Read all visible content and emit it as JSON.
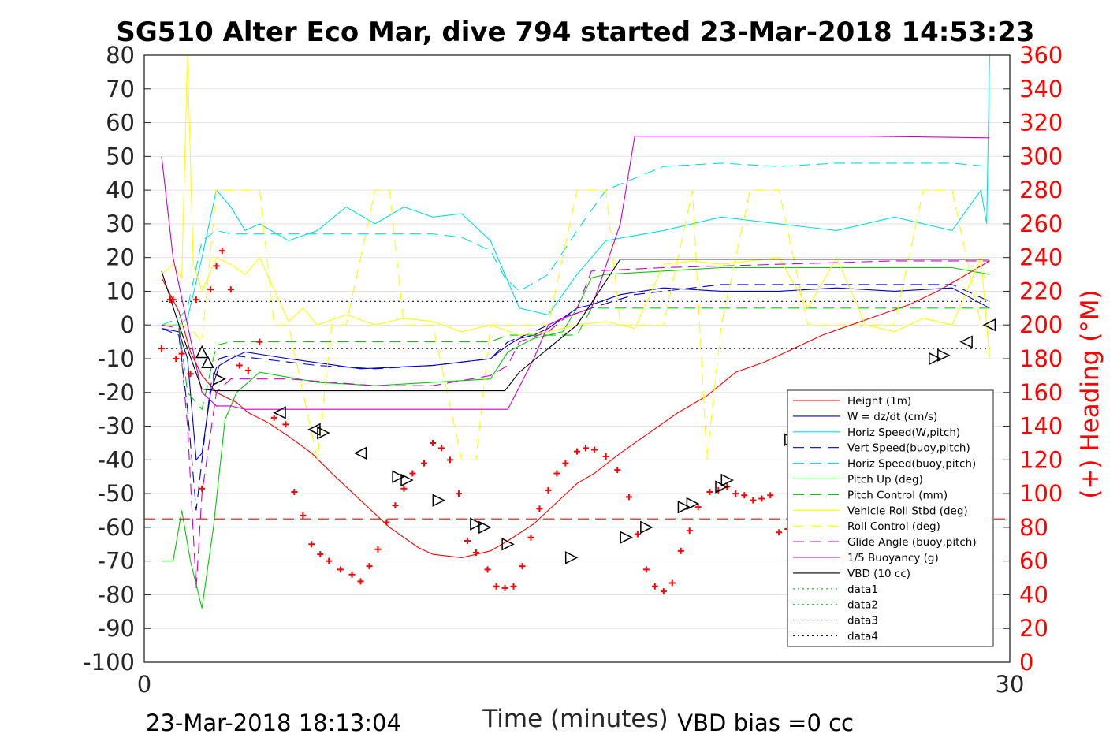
{
  "chart_data": {
    "type": "line",
    "title": "SG510 Alter Eco Mar, dive 794 started 23-Mar-2018 14:53:23",
    "xlabel": "Time (minutes)",
    "ylabel_right": "(+) Heading (°M)",
    "xlim": [
      0,
      30
    ],
    "ylim": [
      -100,
      80
    ],
    "ylim_right": [
      0,
      360
    ],
    "x_ticks": [
      "0",
      "30"
    ],
    "y_ticks": [
      "80",
      "70",
      "60",
      "50",
      "40",
      "30",
      "20",
      "10",
      "0",
      "-10",
      "-20",
      "-30",
      "-40",
      "-50",
      "-60",
      "-70",
      "-80",
      "-90",
      "-100"
    ],
    "y_ticks_right": [
      "360",
      "340",
      "320",
      "300",
      "280",
      "260",
      "240",
      "220",
      "200",
      "180",
      "160",
      "140",
      "120",
      "100",
      "80",
      "60",
      "40",
      "20",
      "0"
    ],
    "grid": true,
    "legend_position": "lower-right",
    "footer_left": "23-Mar-2018 18:13:04",
    "footer_right": "VBD bias =0 cc",
    "series": [
      {
        "name": "Height (1m)",
        "color": "#ff0000",
        "style": "solid",
        "x": [
          0.6,
          1.2,
          1.6,
          2.0,
          2.5,
          3.2,
          3.6,
          4.3,
          5.0,
          5.8,
          6.5,
          7.5,
          8.5,
          9.5,
          10.0,
          11.0,
          12.0,
          12.6,
          13.5,
          14.0,
          14.5,
          15.0,
          15.6,
          16.5,
          17.5,
          18.5,
          19.5,
          20.5,
          21.5,
          22.5,
          23.5,
          24.5,
          25.5,
          26.5,
          27.5,
          28.5,
          29.3
        ],
        "y": [
          14,
          4,
          -8,
          -15,
          -20,
          -23,
          -26,
          -29,
          -33,
          -38,
          -44,
          -52,
          -60,
          -66,
          -68,
          -69,
          -67,
          -64,
          -59,
          -55,
          -51,
          -47,
          -44,
          -38,
          -32,
          -26,
          -21,
          -14,
          -11,
          -7,
          -3,
          0,
          3,
          6,
          10,
          15,
          19
        ]
      },
      {
        "name": "W = dz/dt (cm/s)",
        "color": "#0000cc",
        "style": "solid",
        "x": [
          0.6,
          1.2,
          1.5,
          1.8,
          2.0,
          2.3,
          2.6,
          3.0,
          3.5,
          5.0,
          7.5,
          10.0,
          12.0,
          12.6,
          13.0,
          13.5,
          14.0,
          14.5,
          15.0,
          15.5,
          16.5,
          18.0,
          20.0,
          22.0,
          24.0,
          26.0,
          28.0,
          29.3
        ],
        "y": [
          -1,
          -2,
          -10,
          -40,
          -38,
          -20,
          -12,
          -10,
          -8,
          -10,
          -13,
          -12,
          -10,
          -6,
          -4,
          -3,
          -1,
          2,
          5,
          6,
          9,
          11,
          10,
          10,
          11,
          10,
          11,
          5
        ]
      },
      {
        "name": "Horiz Speed(W,pitch)",
        "color": "#00e0e0",
        "style": "solid",
        "x": [
          0.6,
          1.2,
          1.5,
          2.0,
          2.5,
          3.0,
          3.5,
          4.0,
          5.0,
          6.0,
          7.0,
          8.0,
          9.0,
          10.0,
          11.0,
          12.0,
          12.5,
          13.0,
          14.0,
          15.0,
          15.5,
          16.0,
          18.0,
          20.0,
          22.0,
          24.0,
          26.0,
          28.0,
          29.0,
          29.2,
          29.3
        ],
        "y": [
          0,
          0,
          2,
          20,
          40,
          35,
          28,
          30,
          25,
          28,
          35,
          30,
          35,
          32,
          33,
          25,
          15,
          5,
          3,
          15,
          20,
          25,
          28,
          32,
          30,
          28,
          32,
          28,
          40,
          30,
          80
        ]
      },
      {
        "name": "Vert Speed(buoy,pitch)",
        "color": "#0000cc",
        "style": "dash",
        "x": [
          0.6,
          1.2,
          1.5,
          1.8,
          2.0,
          2.3,
          2.6,
          3.0,
          4.0,
          6.0,
          8.0,
          10.0,
          12.0,
          12.6,
          13.5,
          14.5,
          15.5,
          17.0,
          20.0,
          24.0,
          28.0,
          29.3
        ],
        "y": [
          -1,
          -3,
          -25,
          -55,
          -40,
          -18,
          -10,
          -9,
          -10,
          -12,
          -13,
          -12,
          -10,
          -5,
          -2,
          2,
          5,
          9,
          12,
          12,
          12,
          7
        ]
      },
      {
        "name": "Horiz Speed(buoy,pitch)",
        "color": "#00e0e0",
        "style": "dash",
        "x": [
          0.6,
          1.2,
          1.5,
          2.0,
          2.5,
          3.0,
          4.0,
          6.0,
          8.0,
          10.0,
          11.0,
          12.0,
          12.5,
          13.0,
          14.0,
          15.0,
          16.0,
          18.0,
          20.0,
          22.0,
          24.0,
          26.0,
          28.0,
          29.3
        ],
        "y": [
          0,
          2,
          5,
          25,
          28,
          27,
          27,
          27,
          27,
          27,
          26,
          22,
          14,
          10,
          15,
          28,
          40,
          47,
          48,
          47,
          48,
          48,
          48,
          47
        ]
      },
      {
        "name": "Pitch Up (deg)",
        "color": "#00cc00",
        "style": "solid",
        "x": [
          0.6,
          1.0,
          1.3,
          1.6,
          2.0,
          2.4,
          2.8,
          3.2,
          4.0,
          6.0,
          8.0,
          10.0,
          12.0,
          12.6,
          13.5,
          14.5,
          15.0,
          15.5,
          16.0,
          18.0,
          20.0,
          22.0,
          24.0,
          26.0,
          28.0,
          29.3
        ],
        "y": [
          -70,
          -70,
          -55,
          -70,
          -84,
          -60,
          -28,
          -20,
          -14,
          -17,
          -18,
          -17,
          -16,
          -8,
          -4,
          -2,
          5,
          14,
          15,
          16,
          17,
          17,
          17,
          17,
          17,
          15
        ]
      },
      {
        "name": "Pitch Control (mm)",
        "color": "#00cc00",
        "style": "dash",
        "x": [
          0.6,
          1.2,
          1.5,
          2.0,
          2.5,
          3.0,
          5.0,
          8.0,
          12.0,
          12.6,
          13.0,
          14.0,
          15.0,
          15.5,
          20.0,
          25.0,
          29.3
        ],
        "y": [
          0,
          0,
          -20,
          -25,
          -6,
          -5,
          -5,
          -5,
          -5,
          -3,
          -3,
          -3,
          -3,
          5,
          5,
          5,
          5
        ]
      },
      {
        "name": "Vehicle Roll Stbd (deg)",
        "color": "#ffff00",
        "style": "solid",
        "x": [
          0.6,
          1.0,
          1.3,
          1.5,
          1.7,
          2.0,
          2.5,
          3.0,
          3.5,
          4.0,
          5.0,
          5.5,
          6.0,
          7.0,
          8.0,
          9.0,
          10.0,
          11.0,
          12.0,
          13.0,
          14.0,
          15.0,
          16.0,
          17.0,
          18.0,
          19.0,
          20.0,
          21.0,
          22.0,
          23.0,
          24.0,
          25.0,
          26.0,
          27.0,
          28.0,
          29.0,
          29.3
        ],
        "y": [
          15,
          18,
          14,
          80,
          18,
          10,
          20,
          18,
          15,
          20,
          1,
          5,
          0,
          3,
          0,
          2,
          1,
          -2,
          0,
          -3,
          -2,
          0,
          1,
          -1,
          18,
          19,
          18,
          19,
          20,
          5,
          20,
          0,
          -2,
          2,
          0,
          20,
          -10
        ]
      },
      {
        "name": "Roll Control (deg)",
        "color": "#ffff00",
        "style": "dash",
        "x": [
          0.6,
          1.5,
          2.0,
          2.5,
          3.0,
          4.0,
          4.5,
          5.0,
          6.0,
          6.5,
          7.0,
          8.0,
          8.5,
          9.0,
          10.0,
          11.0,
          11.5,
          12.0,
          13.0,
          14.0,
          15.0,
          16.0,
          16.5,
          17.0,
          18.0,
          19.0,
          19.5,
          20.0,
          21.0,
          22.0,
          23.0,
          24.0,
          25.0,
          26.0,
          27.0,
          28.0,
          29.0,
          29.3
        ],
        "y": [
          0,
          0,
          -5,
          40,
          40,
          40,
          0,
          0,
          -40,
          0,
          0,
          40,
          40,
          0,
          0,
          -40,
          -40,
          0,
          0,
          0,
          40,
          40,
          0,
          0,
          0,
          40,
          -40,
          0,
          40,
          40,
          0,
          0,
          0,
          0,
          40,
          40,
          0,
          0
        ]
      },
      {
        "name": "Glide Angle (buoy,pitch)",
        "color": "#cc00cc",
        "style": "dash",
        "x": [
          0.6,
          1.2,
          1.5,
          1.8,
          2.0,
          2.5,
          3.0,
          5.0,
          8.0,
          10.0,
          12.0,
          12.6,
          13.0,
          14.0,
          15.0,
          15.5,
          18.0,
          22.0,
          26.0,
          29.3
        ],
        "y": [
          0,
          -1,
          -30,
          -78,
          -50,
          -20,
          -16,
          -16,
          -18,
          -18,
          -15,
          -12,
          -5,
          -2,
          5,
          16,
          17,
          18,
          19,
          19
        ]
      },
      {
        "name": "1/5 Buoyancy (g)",
        "color": "#cc00cc",
        "style": "solid",
        "x": [
          0.6,
          1.0,
          1.5,
          2.0,
          2.5,
          3.0,
          3.5,
          12.0,
          12.6,
          13.5,
          14.0,
          14.5,
          15.5,
          16.5,
          17.0,
          20.0,
          25.0,
          29.3
        ],
        "y": [
          50,
          20,
          0,
          -20,
          -24,
          -24,
          -25,
          -25,
          -25,
          -10,
          0,
          2,
          5,
          30,
          56,
          56,
          56,
          55.5
        ]
      },
      {
        "name": "VBD (10 cc)",
        "color": "#000000",
        "style": "solid",
        "x": [
          0.6,
          1.2,
          2.0,
          2.5,
          5.0,
          10.0,
          12.5,
          13.0,
          15.0,
          16.5,
          17.0,
          20.0,
          25.0,
          29.3
        ],
        "y": [
          16,
          0,
          -19,
          -19.5,
          -19.5,
          -19.5,
          -19.5,
          -14,
          0,
          19.5,
          19.5,
          19.5,
          19.5,
          19.5
        ]
      },
      {
        "name": "data1",
        "color": "#00cc00",
        "style": "dot",
        "x": [],
        "y": []
      },
      {
        "name": "data2",
        "color": "#00cc00",
        "style": "dot",
        "x": [],
        "y": []
      },
      {
        "name": "data3",
        "color": "#000080",
        "style": "dot",
        "x": [
          0.6,
          29.3
        ],
        "y": [
          7,
          7
        ]
      },
      {
        "name": "data4",
        "color": "#000080",
        "style": "dot",
        "x": [
          0.6,
          29.3
        ],
        "y": [
          -7,
          -7
        ]
      }
    ],
    "heading_series": {
      "axis": "right",
      "color": "#ff0000",
      "marker": "+",
      "x": [
        0.6,
        0.9,
        1.0,
        1.1,
        1.3,
        1.6,
        1.8,
        2.0,
        2.3,
        2.5,
        2.7,
        3.0,
        3.3,
        3.6,
        4.0,
        4.5,
        4.9,
        5.2,
        5.5,
        5.8,
        6.1,
        6.4,
        6.8,
        7.2,
        7.5,
        7.8,
        8.1,
        8.4,
        8.7,
        9.0,
        9.3,
        9.7,
        10.0,
        10.3,
        10.6,
        10.9,
        11.2,
        11.5,
        11.9,
        12.2,
        12.5,
        12.8,
        13.1,
        13.4,
        13.7,
        14.0,
        14.3,
        14.6,
        15.0,
        15.3,
        15.6,
        16.0,
        16.4,
        16.8,
        17.1,
        17.4,
        17.7,
        18.0,
        18.3,
        18.6,
        18.9,
        19.2,
        19.6,
        19.9,
        20.2,
        20.5,
        20.8,
        21.1,
        21.4,
        21.7,
        22.0,
        22.3,
        22.6,
        22.9,
        23.2,
        23.5,
        23.8,
        24.1,
        24.4,
        24.7,
        25.0,
        25.3,
        25.6,
        25.9,
        26.2,
        26.5,
        26.8,
        27.1,
        27.4,
        27.7,
        28.0,
        28.3,
        28.6,
        28.9,
        29.3
      ],
      "y": [
        186,
        215,
        215,
        180,
        183,
        171,
        215,
        103,
        221,
        235,
        244,
        221,
        176,
        173,
        190,
        145,
        141,
        101,
        87,
        70,
        64,
        60,
        55,
        52,
        48,
        57,
        67,
        83,
        93,
        103,
        112,
        118,
        130,
        127,
        120,
        100,
        72,
        65,
        55,
        45,
        44,
        45,
        57,
        74,
        91,
        102,
        112,
        118,
        125,
        127,
        126,
        122,
        114,
        98,
        76,
        55,
        45,
        42,
        47,
        66,
        78,
        92,
        101,
        102,
        104,
        100,
        99,
        96,
        97,
        99,
        77,
        79,
        82,
        86,
        92,
        101,
        96,
        85,
        80,
        79,
        73,
        81,
        86,
        90,
        80,
        68,
        66,
        64,
        84,
        92,
        98,
        100,
        103,
        104,
        102
      ]
    },
    "markers": {
      "color": "#000000",
      "x": [
        2.0,
        2.2,
        2.6,
        4.7,
        5.9,
        6.2,
        7.5,
        8.8,
        9.1,
        10.2,
        11.5,
        11.8,
        12.6,
        14.8,
        16.7,
        17.4,
        18.7,
        19.0,
        20.0,
        20.2,
        22.4,
        22.8,
        23.5,
        23.7,
        27.4,
        27.7,
        28.5,
        29.3
      ],
      "y": [
        -8,
        -11,
        -16,
        -26,
        -31,
        -32,
        -38,
        -45,
        -46,
        -52,
        -59,
        -60,
        -65,
        -69,
        -63,
        -60,
        -54,
        -53,
        -48,
        -46,
        -34,
        -33,
        -30,
        -29,
        -10,
        -9,
        -5,
        0
      ],
      "direction": [
        "up",
        "up",
        "right",
        "left",
        "left",
        "right",
        "left",
        "right",
        "right",
        "right",
        "right",
        "right",
        "right",
        "right",
        "right",
        "right",
        "right",
        "right",
        "right",
        "right",
        "right",
        "right",
        "right",
        "right",
        "right",
        "right",
        "left",
        "left"
      ]
    }
  }
}
